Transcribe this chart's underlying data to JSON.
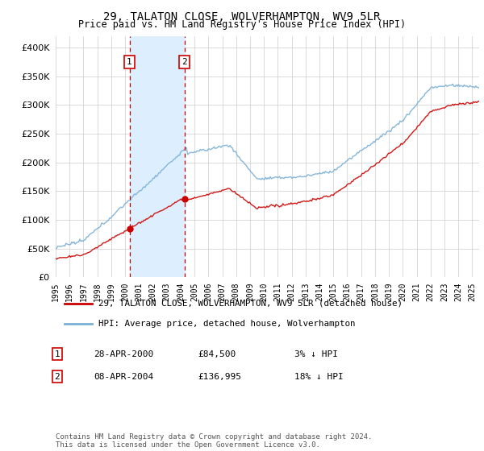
{
  "title": "29, TALATON CLOSE, WOLVERHAMPTON, WV9 5LR",
  "subtitle": "Price paid vs. HM Land Registry's House Price Index (HPI)",
  "ytick_values": [
    0,
    50000,
    100000,
    150000,
    200000,
    250000,
    300000,
    350000,
    400000
  ],
  "ylim": [
    0,
    420000
  ],
  "xlim_start": 1995.0,
  "xlim_end": 2025.5,
  "sale1_date": 2000.32,
  "sale1_price": 84500,
  "sale2_date": 2004.27,
  "sale2_price": 136995,
  "legend_label_red": "29, TALATON CLOSE, WOLVERHAMPTON, WV9 5LR (detached house)",
  "legend_label_blue": "HPI: Average price, detached house, Wolverhampton",
  "annotation1": [
    "1",
    "28-APR-2000",
    "£84,500",
    "3% ↓ HPI"
  ],
  "annotation2": [
    "2",
    "08-APR-2004",
    "£136,995",
    "18% ↓ HPI"
  ],
  "footer": "Contains HM Land Registry data © Crown copyright and database right 2024.\nThis data is licensed under the Open Government Licence v3.0.",
  "red_color": "#cc0000",
  "blue_color": "#7aafd4",
  "shaded_color": "#ddeeff",
  "grid_color": "#cccccc",
  "background_color": "#ffffff"
}
